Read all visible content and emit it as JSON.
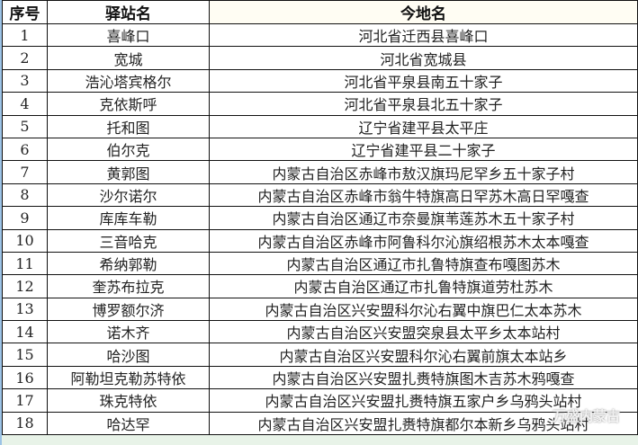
{
  "headers": [
    "序号",
    "驿站名",
    "今地名"
  ],
  "rows": [
    [
      "1",
      "喜峰口",
      "河北省迁西县喜峰口"
    ],
    [
      "2",
      "宽城",
      "河北省宽城县"
    ],
    [
      "3",
      "浩沁塔宾格尔",
      "河北省平泉县南五十家子"
    ],
    [
      "4",
      "克依斯呼",
      "河北省平泉县北五十家子"
    ],
    [
      "5",
      "托和图",
      "辽宁省建平县太平庄"
    ],
    [
      "6",
      "伯尔克",
      "辽宁省建平县二十家子"
    ],
    [
      "7",
      "黄郭图",
      "内蒙古自治区赤峰市敖汉旗玛尼罕乡五十家子村"
    ],
    [
      "8",
      "沙尔诺尔",
      "内蒙古自治区赤峰市翁牛特旗高日罕苏木高日罕嘎查"
    ],
    [
      "9",
      "库库车勒",
      "内蒙古自治区通辽市奈曼旗苇莲苏木五十家子村"
    ],
    [
      "10",
      "三音哈克",
      "内蒙古自治区赤峰市阿鲁科尔沁旗绍根苏木太本嘎查"
    ],
    [
      "11",
      "希纳郭勒",
      "内蒙古自治区通辽市扎鲁特旗查布嘎图苏木"
    ],
    [
      "12",
      "奎苏布拉克",
      "内蒙古自治区通辽市扎鲁特旗道劳杜苏木"
    ],
    [
      "13",
      "博罗额尔济",
      "内蒙古自治区兴安盟科尔沁右翼中旗巴仁太本苏木"
    ],
    [
      "14",
      "诺木齐",
      "内蒙古自治区兴安盟突泉县太平乡太本站村"
    ],
    [
      "15",
      "哈沙图",
      "内蒙古自治区兴安盟科尔沁右翼前旗太本站乡"
    ],
    [
      "16",
      "阿勒坦克勒苏特依",
      "内蒙古自治区兴安盟扎赉特旗图木吉苏木鸦嘎查"
    ],
    [
      "17",
      "珠克特依",
      "内蒙古自治区兴安盟扎赉特旗五家户乡乌鸦头站村"
    ],
    [
      "18",
      "哈达罕",
      "内蒙古自治区兴安盟扎赉特旗都尔本新乡乌鸦头站村"
    ]
  ],
  "watermark": "万盛内蒙古"
}
